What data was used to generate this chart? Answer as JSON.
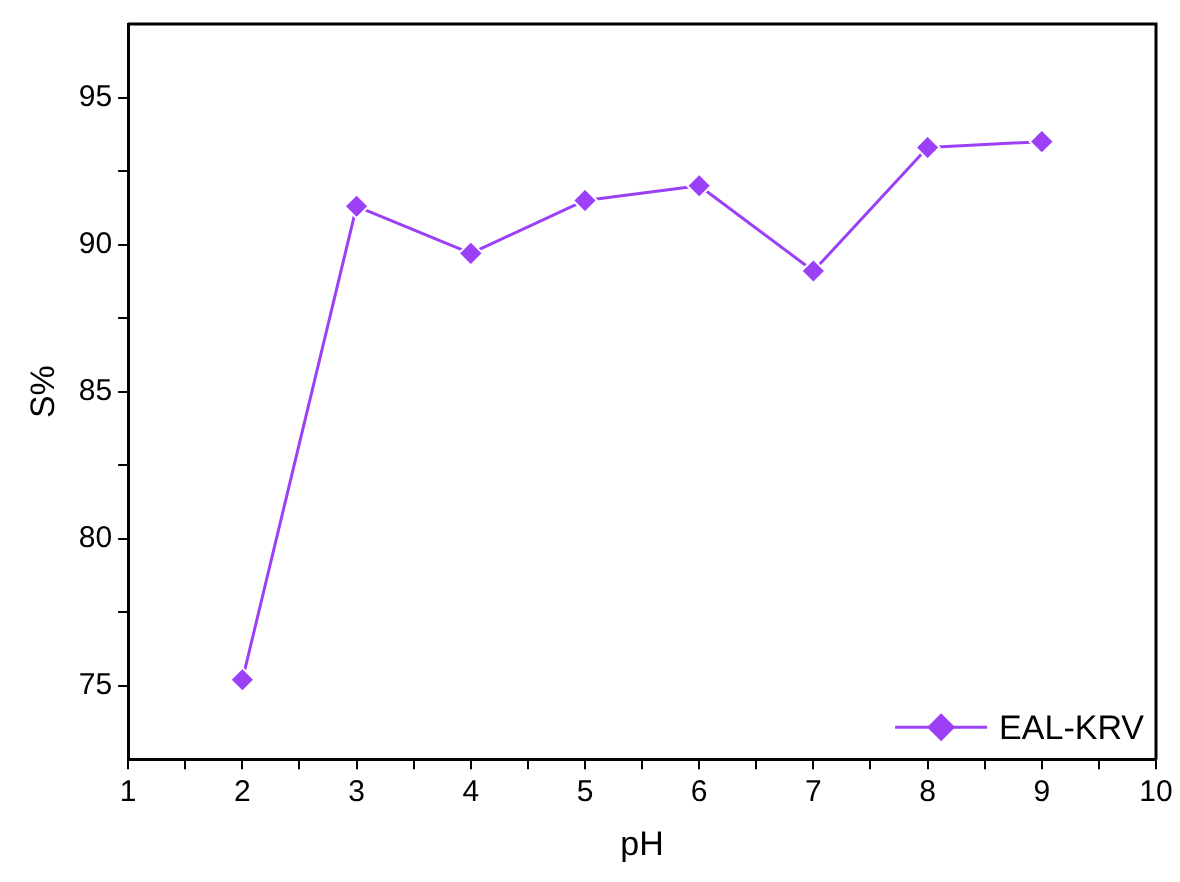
{
  "chart_data": {
    "type": "line",
    "xlabel": "pH",
    "ylabel": "S%",
    "x": [
      2,
      3,
      4,
      5,
      6,
      7,
      8,
      9
    ],
    "series": [
      {
        "name": "EAL-KRV",
        "color": "#9b40f7",
        "values": [
          75.2,
          91.3,
          89.7,
          91.5,
          92.0,
          89.1,
          93.3,
          93.5
        ]
      }
    ],
    "xlim": [
      1,
      10
    ],
    "xticks": [
      1,
      {
        "value": 1.5,
        "label": null
      },
      2,
      {
        "value": 2.5,
        "label": null
      },
      3,
      {
        "value": 3.5,
        "label": null
      },
      4,
      {
        "value": 4.5,
        "label": null
      },
      5,
      {
        "value": 5.5,
        "label": null
      },
      6,
      {
        "value": 6.5,
        "label": null
      },
      7,
      {
        "value": 7.5,
        "label": null
      },
      8,
      {
        "value": 8.5,
        "label": null
      },
      9,
      {
        "value": 9.5,
        "label": null
      },
      10
    ],
    "ylim": [
      72.5,
      97.5
    ],
    "yticks": [
      75,
      {
        "value": 77.5,
        "label": null
      },
      80,
      {
        "value": 82.5,
        "label": null
      },
      85,
      {
        "value": 87.5,
        "label": null
      },
      90,
      {
        "value": 92.5,
        "label": null
      },
      95
    ],
    "marker": "diamond",
    "line_style": "solid",
    "legend": "bottom right",
    "grid": false
  }
}
